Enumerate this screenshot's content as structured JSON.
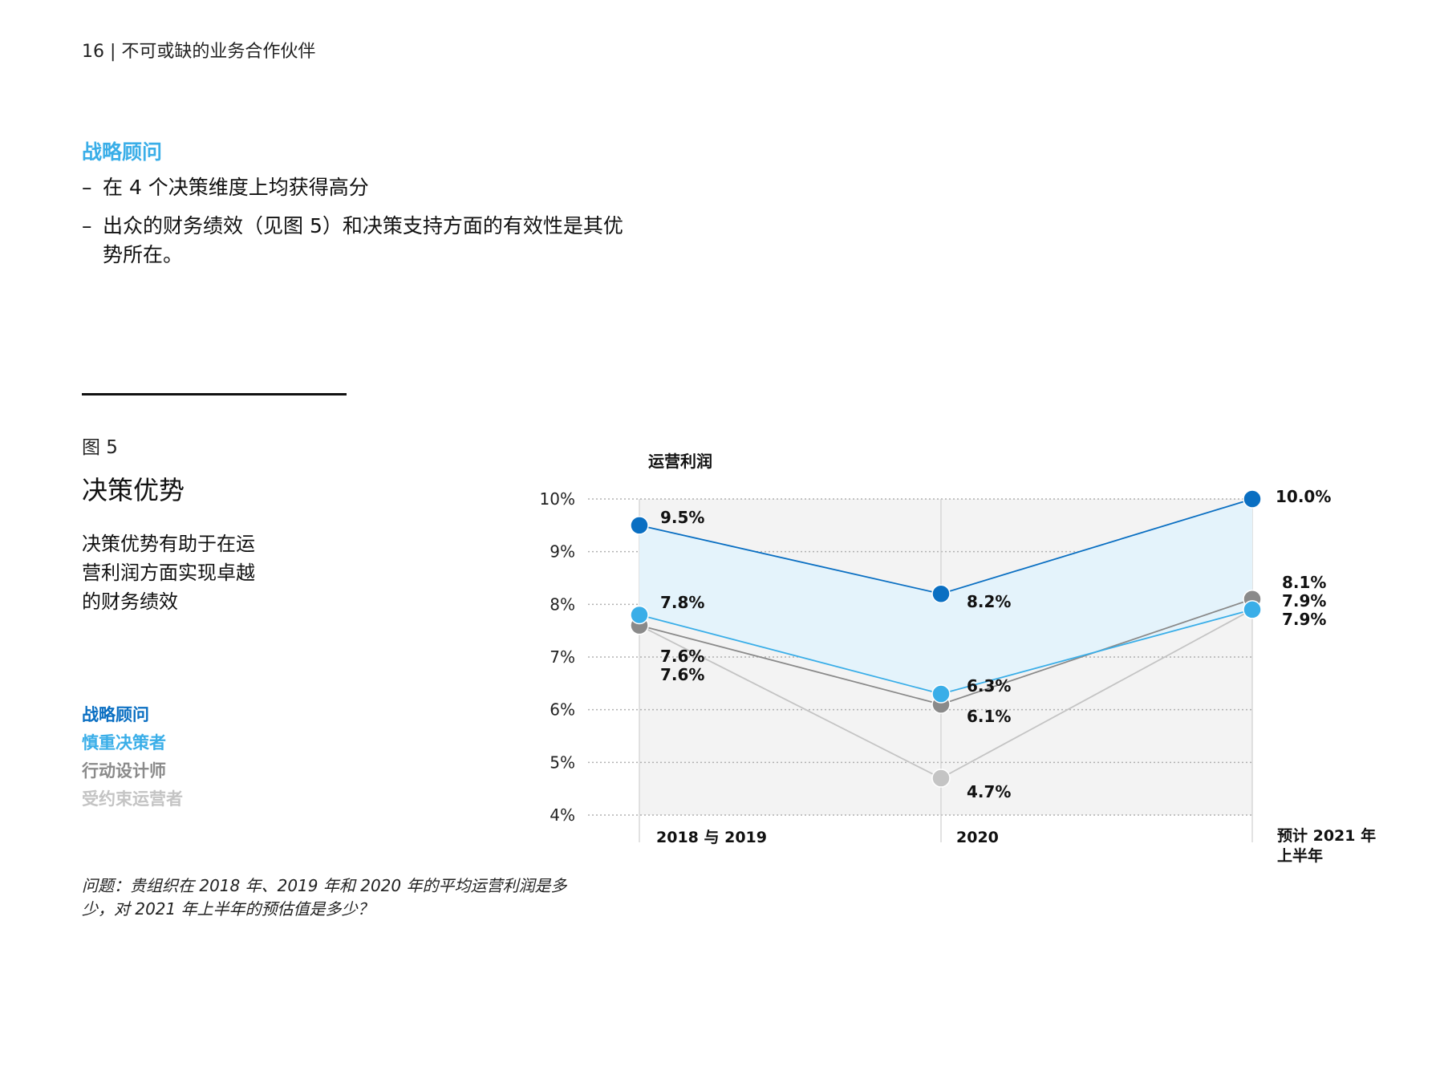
{
  "page": {
    "header": "16 | 不可或缺的业务合作伙伴",
    "section_title": "战略顾问",
    "bullets": [
      "在 4 个决策维度上均获得高分",
      "出众的财务绩效（见图 5）和决策支持方面的有效性是其优势所在。"
    ],
    "figure_label": "图 5",
    "figure_title": "决策优势",
    "figure_description": "决策优势有助于在运营利润方面实现卓越的财务绩效",
    "question": "问题：贵组织在 2018 年、2019 年和 2020 年的平均运营利润是多少，对 2021 年上半年的预估值是多少？"
  },
  "colors": {
    "strategic": "#0a6fc2",
    "prudent": "#3aaee8",
    "designer": "#8a8a8a",
    "constrained": "#c4c4c4",
    "band_fill": "#e4f3fb",
    "plot_bg": "#f3f3f3"
  },
  "chart_data": {
    "type": "line",
    "title": "运营利润",
    "categories": [
      "2018 与 2019",
      "2020",
      "预计 2021 年上半年"
    ],
    "ylim": [
      4,
      10
    ],
    "yticks": [
      "10%",
      "9%",
      "8%",
      "7%",
      "6%",
      "5%",
      "4%"
    ],
    "grid": true,
    "legend_position": "left",
    "series": [
      {
        "name": "战略顾问",
        "values": [
          9.5,
          8.2,
          10.0
        ],
        "labels": [
          "9.5%",
          "8.2%",
          "10.0%"
        ],
        "color": "#0a6fc2"
      },
      {
        "name": "慎重决策者",
        "values": [
          7.8,
          6.3,
          7.9
        ],
        "labels": [
          "7.8%",
          "6.3%",
          "7.9%"
        ],
        "color": "#3aaee8"
      },
      {
        "name": "行动设计师",
        "values": [
          7.6,
          6.1,
          8.1
        ],
        "labels": [
          "7.6%",
          "6.1%",
          "8.1%"
        ],
        "color": "#8a8a8a"
      },
      {
        "name": "受约束运营者",
        "values": [
          7.6,
          4.7,
          7.9
        ],
        "labels": [
          "7.6%",
          "4.7%",
          "7.9%"
        ],
        "color": "#c4c4c4"
      }
    ]
  }
}
